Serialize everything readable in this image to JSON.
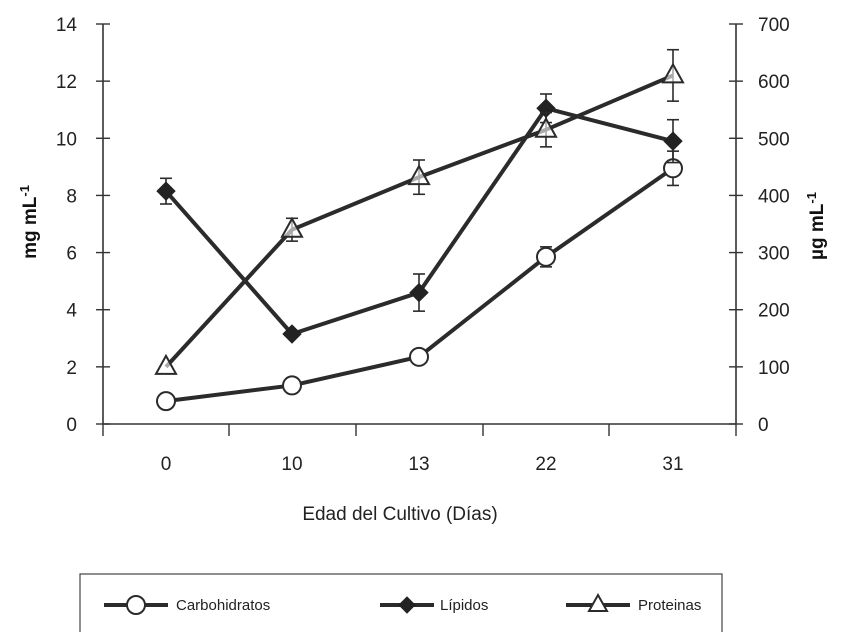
{
  "chart_data": {
    "type": "line",
    "categories": [
      "0",
      "10",
      "13",
      "22",
      "31"
    ],
    "xlabel": "Edad del Cultivo (Días)",
    "ylabel_left": "mg mL",
    "ylabel_left_sup": "-1",
    "ylabel_right": "µg mL",
    "ylabel_right_sup": "-1",
    "ylim_left": [
      0,
      14
    ],
    "yticks_left": [
      0,
      2,
      4,
      6,
      8,
      10,
      12,
      14
    ],
    "ylim_right": [
      0,
      700
    ],
    "yticks_right": [
      0,
      100,
      200,
      300,
      400,
      500,
      600,
      700
    ],
    "grid": false,
    "legend_position": "bottom",
    "series": [
      {
        "name": "Carbohidratos",
        "marker": "circle-open",
        "axis": "left",
        "values": [
          0.8,
          1.35,
          2.35,
          5.85,
          8.95
        ],
        "errors": [
          0,
          0,
          0,
          0.35,
          0.6
        ]
      },
      {
        "name": "Lípidos",
        "marker": "diamond-filled",
        "axis": "left",
        "values": [
          8.15,
          3.15,
          4.6,
          11.05,
          9.9
        ],
        "errors": [
          0.45,
          0,
          0.65,
          0.5,
          0.75
        ]
      },
      {
        "name": "Proteinas",
        "marker": "triangle-open",
        "axis": "right",
        "values": [
          100,
          340,
          432,
          515,
          610
        ],
        "errors": [
          0,
          20,
          30,
          30,
          45
        ]
      }
    ],
    "colors": {
      "line": "#2b2b2b",
      "marker_fill": "#ffffff",
      "marker_solid": "#222222",
      "axis": "#333333"
    }
  }
}
